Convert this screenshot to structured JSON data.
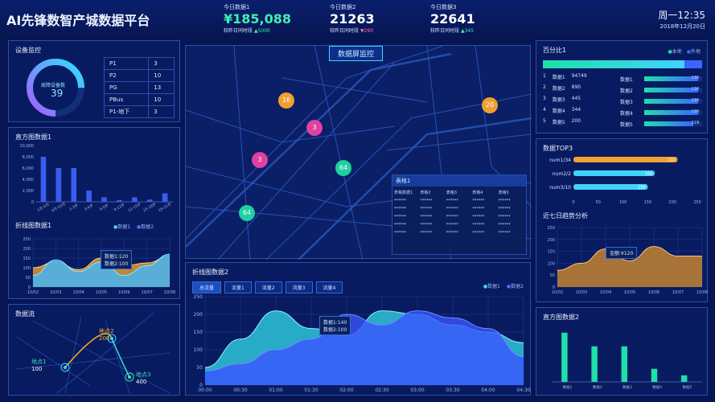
{
  "header": {
    "title": "AI先锋数智产城数据平台",
    "time": "周一12:35",
    "date": "2018年12月20日"
  },
  "kpis": [
    {
      "label": "今日数据1",
      "value": "¥185,088",
      "sub": "较昨日同时段",
      "delta": "5000",
      "dir": "up",
      "color": "#3ff0b0"
    },
    {
      "label": "今日数据2",
      "value": "21263",
      "sub": "较昨日同时段",
      "delta": "290",
      "dir": "down",
      "color": "#ff6fb4"
    },
    {
      "label": "今日数据3",
      "value": "22641",
      "sub": "较昨日同时段",
      "delta": "345",
      "dir": "up",
      "color": "#3ff0b0"
    }
  ],
  "device": {
    "title": "设备监控",
    "gauge_label": "故障设备数",
    "gauge_value": "39",
    "gauge_fraction": 0.75,
    "rows": [
      [
        "P1",
        "3"
      ],
      [
        "P2",
        "10"
      ],
      [
        "PG",
        "13"
      ],
      [
        "PBus",
        "10"
      ],
      [
        "P1-地下",
        "3"
      ]
    ]
  },
  "hist1": {
    "title": "直方图数据1",
    "chart_data": {
      "type": "bar",
      "categories": [
        "1月-5月",
        "5月-10月",
        "1-3岁",
        "3-6岁",
        "6-9岁",
        "9-12岁",
        "12-15岁",
        "15-18岁",
        "18-21岁"
      ],
      "values": [
        8000,
        6000,
        6000,
        2000,
        800,
        300,
        800,
        400,
        1500
      ],
      "ylim": [
        0,
        10000
      ],
      "yticks": [
        "10,000",
        "8,000",
        "6,000",
        "4,000",
        "2,000",
        "0"
      ]
    }
  },
  "line1": {
    "title": "折线图数据1",
    "legend": [
      "数据1",
      "数据2"
    ],
    "tooltip": [
      "数据1:120",
      "数据2:100"
    ],
    "chart_data": {
      "type": "area",
      "x": [
        "10/02",
        "10/03",
        "10/04",
        "10/05",
        "10/06",
        "10/07",
        "10/08"
      ],
      "yticks": [
        "250",
        "200",
        "150",
        "100",
        "50",
        "0"
      ],
      "series": [
        {
          "name": "数据1",
          "values": [
            100,
            130,
            90,
            150,
            110,
            125,
            160
          ]
        },
        {
          "name": "数据2",
          "values": [
            60,
            140,
            80,
            130,
            60,
            110,
            170
          ]
        }
      ],
      "ylim": [
        0,
        250
      ]
    }
  },
  "flow": {
    "title": "数据流",
    "points": [
      {
        "label": "地点1",
        "value": "100"
      },
      {
        "label": "地点2",
        "value": "200"
      },
      {
        "label": "地点3",
        "value": "400"
      }
    ]
  },
  "map": {
    "title": "数据屏监控",
    "markers": [
      "16",
      "3",
      "3",
      "64",
      "64",
      "20"
    ],
    "table": {
      "title": "表格1",
      "headers": [
        "表格数据1",
        "表格2",
        "表格3",
        "表格4",
        "表格5"
      ],
      "cell": "******"
    }
  },
  "line2": {
    "title": "折线图数据2",
    "tabs": [
      "总流量",
      "流量1",
      "流量2",
      "流量3",
      "流量4"
    ],
    "legend": [
      "数据1",
      "数据2"
    ],
    "tooltip": [
      "数据1:140",
      "数据2:100"
    ],
    "chart_data": {
      "type": "area",
      "x": [
        "00:00",
        "00:30",
        "01:00",
        "01:30",
        "02:00",
        "02:30",
        "03:00",
        "03:30",
        "04:00",
        "04:30"
      ],
      "yticks": [
        "250",
        "200",
        "150",
        "100",
        "50",
        "0"
      ],
      "ylim": [
        0,
        250
      ],
      "series": [
        {
          "name": "数据1",
          "values": [
            50,
            130,
            210,
            160,
            140,
            210,
            200,
            170,
            150,
            120
          ]
        },
        {
          "name": "数据2",
          "values": [
            40,
            60,
            100,
            130,
            200,
            170,
            210,
            190,
            160,
            80
          ]
        }
      ]
    }
  },
  "pct": {
    "title": "百分比1",
    "legend": [
      "本地",
      "外地"
    ],
    "local_fraction": 0.89,
    "rows": [
      [
        "1",
        "数据1",
        "94749"
      ],
      [
        "2",
        "数据2",
        "890"
      ],
      [
        "3",
        "数据3",
        "445"
      ],
      [
        "4",
        "数据4",
        "344"
      ],
      [
        "5",
        "数据5",
        "200"
      ]
    ],
    "bars": [
      [
        "数据1",
        "130"
      ],
      [
        "数据2",
        "130"
      ],
      [
        "数据3",
        "130"
      ],
      [
        "数据4",
        "130"
      ],
      [
        "数据5",
        "119"
      ]
    ]
  },
  "top3": {
    "title": "数据TOP3",
    "chart_data": {
      "type": "bar",
      "categories": [
        "num1/34",
        "num2/2",
        "num3/10"
      ],
      "values": [
        210,
        164,
        150
      ],
      "xlim": [
        0,
        250
      ],
      "xticks": [
        "0",
        "50",
        "100",
        "150",
        "200",
        "250"
      ]
    }
  },
  "trend": {
    "title": "近七日趋势分析",
    "tooltip": "金额:¥120",
    "chart_data": {
      "type": "area",
      "x": [
        "10/02",
        "10/03",
        "10/04",
        "10/05",
        "10/06",
        "10/07",
        "10/08"
      ],
      "values": [
        70,
        100,
        160,
        110,
        170,
        130,
        130
      ],
      "ylim": [
        0,
        250
      ],
      "yticks": [
        "250",
        "200",
        "150",
        "100",
        "50",
        "0"
      ]
    }
  },
  "hist2": {
    "title": "直方图数据2",
    "chart_data": {
      "type": "bar",
      "categories": [
        "数据1",
        "数据2",
        "数据3",
        "数据4",
        "数据5"
      ],
      "values": [
        90,
        65,
        65,
        24,
        12
      ],
      "ylim": [
        0,
        100
      ]
    }
  },
  "colors": {
    "bg": "#071552",
    "accent": "#3fd4ff",
    "green": "#1fe0a8",
    "blue": "#3a66ff",
    "orange": "#f0a030"
  }
}
